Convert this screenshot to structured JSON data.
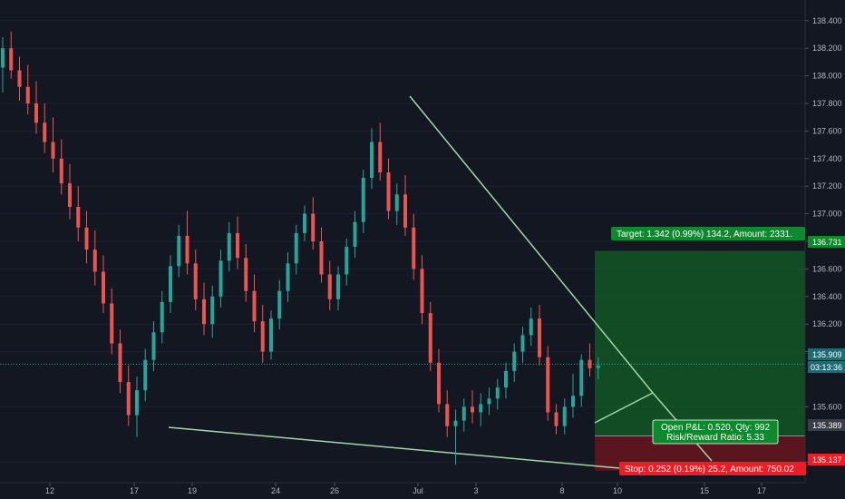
{
  "chart_data": {
    "type": "candlestick",
    "ylim": [
      135.05,
      138.55
    ],
    "y_ticks": [
      "138.400",
      "138.200",
      "138.000",
      "137.800",
      "137.600",
      "137.400",
      "137.200",
      "137.000",
      "136.800",
      "136.600",
      "136.400",
      "136.200",
      "136.000",
      "135.600",
      "135.200"
    ],
    "x_ticks": [
      "12",
      "17",
      "19",
      "24",
      "26",
      "Jul",
      "3",
      "8",
      "10",
      "15",
      "17"
    ],
    "current_price": "135.909",
    "countdown": "03:13:36",
    "entry_price": "135.389",
    "target_price": "136.731",
    "stop_price": "135.137",
    "target_label": "Target: 1.342 (0.99%) 134.2, Amount: 2331.",
    "stop_label": "Stop: 0.252 (0.19%) 25.2, Amount: 750.02",
    "pnl_label": "Open P&L: 0.520, Qty: 992",
    "rr_label": "Risk/Reward Ratio: 5.33",
    "candles": [
      [
        138.06,
        138.28,
        137.88,
        138.2
      ],
      [
        138.2,
        138.32,
        137.98,
        138.04
      ],
      [
        138.04,
        138.14,
        137.82,
        137.92
      ],
      [
        137.92,
        138.08,
        137.72,
        137.8
      ],
      [
        137.8,
        137.96,
        137.58,
        137.66
      ],
      [
        137.66,
        137.8,
        137.44,
        137.52
      ],
      [
        137.52,
        137.7,
        137.3,
        137.4
      ],
      [
        137.4,
        137.54,
        137.14,
        137.22
      ],
      [
        137.22,
        137.36,
        136.96,
        137.05
      ],
      [
        137.05,
        137.2,
        136.8,
        136.9
      ],
      [
        136.9,
        137.02,
        136.64,
        136.74
      ],
      [
        136.74,
        136.88,
        136.48,
        136.58
      ],
      [
        136.58,
        136.7,
        136.28,
        136.35
      ],
      [
        136.35,
        136.46,
        135.98,
        136.06
      ],
      [
        136.06,
        136.16,
        135.7,
        135.78
      ],
      [
        135.78,
        135.9,
        135.46,
        135.54
      ],
      [
        135.54,
        135.82,
        135.38,
        135.72
      ],
      [
        135.72,
        136.02,
        135.64,
        135.94
      ],
      [
        135.94,
        136.22,
        135.86,
        136.14
      ],
      [
        136.14,
        136.44,
        136.06,
        136.36
      ],
      [
        136.36,
        136.7,
        136.28,
        136.62
      ],
      [
        136.62,
        136.92,
        136.54,
        136.84
      ],
      [
        136.84,
        137.02,
        136.56,
        136.64
      ],
      [
        136.64,
        136.74,
        136.3,
        136.38
      ],
      [
        136.38,
        136.5,
        136.12,
        136.2
      ],
      [
        136.2,
        136.48,
        136.1,
        136.4
      ],
      [
        136.4,
        136.74,
        136.32,
        136.66
      ],
      [
        136.66,
        136.94,
        136.58,
        136.86
      ],
      [
        136.86,
        136.98,
        136.6,
        136.68
      ],
      [
        136.68,
        136.78,
        136.36,
        136.44
      ],
      [
        136.44,
        136.56,
        136.14,
        136.22
      ],
      [
        136.22,
        136.34,
        135.92,
        136.0
      ],
      [
        136.0,
        136.3,
        135.94,
        136.24
      ],
      [
        136.24,
        136.52,
        136.16,
        136.44
      ],
      [
        136.44,
        136.72,
        136.36,
        136.64
      ],
      [
        136.64,
        136.92,
        136.56,
        136.86
      ],
      [
        136.86,
        137.06,
        136.8,
        137.0
      ],
      [
        137.0,
        137.12,
        136.74,
        136.8
      ],
      [
        136.8,
        136.9,
        136.5,
        136.56
      ],
      [
        136.56,
        136.66,
        136.3,
        136.38
      ],
      [
        136.38,
        136.62,
        136.3,
        136.56
      ],
      [
        136.56,
        136.82,
        136.48,
        136.76
      ],
      [
        136.76,
        137.02,
        136.68,
        136.94
      ],
      [
        136.94,
        137.32,
        136.86,
        137.26
      ],
      [
        137.26,
        137.62,
        137.18,
        137.52
      ],
      [
        137.52,
        137.66,
        137.24,
        137.3
      ],
      [
        137.3,
        137.4,
        136.96,
        137.02
      ],
      [
        137.02,
        137.22,
        136.92,
        137.14
      ],
      [
        137.14,
        137.28,
        136.84,
        136.9
      ],
      [
        136.9,
        137.0,
        136.52,
        136.6
      ],
      [
        136.6,
        136.7,
        136.2,
        136.28
      ],
      [
        136.28,
        136.36,
        135.86,
        135.92
      ],
      [
        135.92,
        136.02,
        135.56,
        135.62
      ],
      [
        135.62,
        135.72,
        135.38,
        135.46
      ],
      [
        135.46,
        135.58,
        135.18,
        135.5
      ],
      [
        135.5,
        135.66,
        135.42,
        135.6
      ],
      [
        135.6,
        135.72,
        135.48,
        135.56
      ],
      [
        135.56,
        135.7,
        135.46,
        135.62
      ],
      [
        135.62,
        135.74,
        135.54,
        135.66
      ],
      [
        135.66,
        135.8,
        135.58,
        135.74
      ],
      [
        135.74,
        135.92,
        135.66,
        135.86
      ],
      [
        135.86,
        136.06,
        135.78,
        136.0
      ],
      [
        136.0,
        136.18,
        135.92,
        136.12
      ],
      [
        136.12,
        136.32,
        136.04,
        136.24
      ],
      [
        136.24,
        136.34,
        135.9,
        135.96
      ],
      [
        135.96,
        136.04,
        135.5,
        135.56
      ],
      [
        135.56,
        135.62,
        135.4,
        135.46
      ],
      [
        135.46,
        135.66,
        135.4,
        135.6
      ],
      [
        135.6,
        135.84,
        135.52,
        135.68
      ],
      [
        135.68,
        135.98,
        135.6,
        135.94
      ],
      [
        135.94,
        136.06,
        135.82,
        135.88
      ],
      [
        135.88,
        135.96,
        135.8,
        135.9
      ]
    ]
  }
}
